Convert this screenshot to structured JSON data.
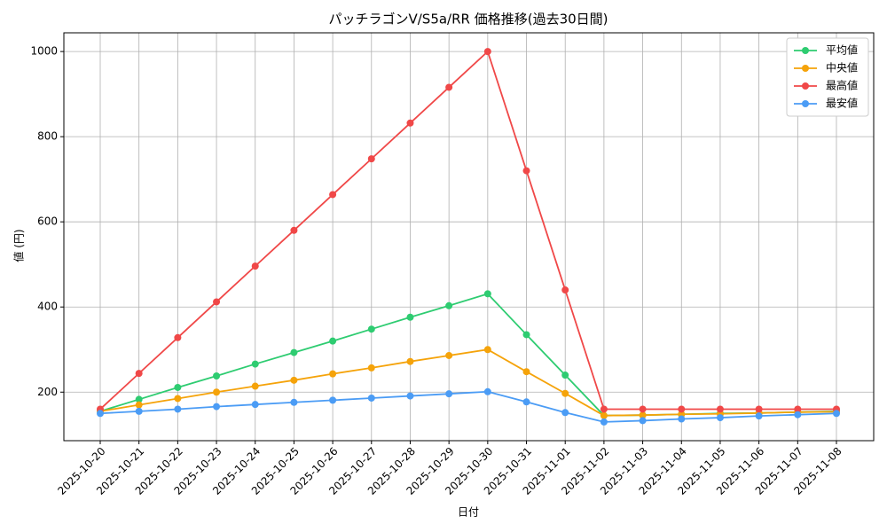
{
  "chart_data": {
    "type": "line",
    "title": "パッチラゴンV/S5a/RR 価格推移(過去30日間)",
    "x_label": "日付",
    "y_label": "値 (円)",
    "categories": [
      "2025-10-20",
      "2025-10-21",
      "2025-10-22",
      "2025-10-23",
      "2025-10-24",
      "2025-10-25",
      "2025-10-26",
      "2025-10-27",
      "2025-10-28",
      "2025-10-29",
      "2025-10-30",
      "2025-10-31",
      "2025-11-01",
      "2025-11-02",
      "2025-11-03",
      "2025-11-04",
      "2025-11-05",
      "2025-11-06",
      "2025-11-07",
      "2025-11-08"
    ],
    "series": [
      {
        "name": "平均値",
        "color": "#2ecc71",
        "values": [
          155,
          183,
          211,
          238,
          266,
          293,
          320,
          348,
          376,
          403,
          431,
          335,
          240,
          145,
          146,
          148,
          150,
          151,
          153,
          155
        ]
      },
      {
        "name": "中央値",
        "color": "#f5a30a",
        "values": [
          155,
          170,
          185,
          200,
          214,
          228,
          243,
          257,
          272,
          286,
          300,
          248,
          197,
          145,
          146,
          148,
          149,
          151,
          153,
          154
        ]
      },
      {
        "name": "最高値",
        "color": "#f04848",
        "values": [
          160,
          244,
          328,
          412,
          496,
          580,
          664,
          748,
          832,
          916,
          1000,
          720,
          440,
          160,
          160,
          160,
          160,
          160,
          160,
          160
        ]
      },
      {
        "name": "最安値",
        "color": "#4b9cf5",
        "values": [
          150,
          155,
          160,
          166,
          171,
          176,
          181,
          186,
          191,
          196,
          201,
          177,
          152,
          130,
          133,
          137,
          140,
          144,
          147,
          150
        ]
      }
    ],
    "ylim": [
      86,
      1044
    ],
    "yticks": [
      200,
      400,
      600,
      800,
      1000
    ],
    "grid": true,
    "legend": "upper right"
  }
}
